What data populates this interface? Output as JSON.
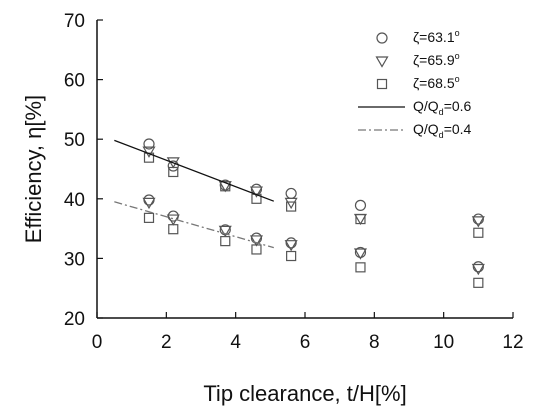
{
  "chart_data": {
    "type": "scatter",
    "xlabel": "Tip clearance, t/H[%]",
    "ylabel": "Efficiency, η[%]",
    "xlim": [
      0,
      12
    ],
    "ylim": [
      20,
      70
    ],
    "xticks": [
      "0",
      "2",
      "4",
      "6",
      "8",
      "10",
      "12"
    ],
    "yticks": [
      "20",
      "30",
      "40",
      "50",
      "60",
      "70"
    ],
    "x_tick_values": [
      0,
      2,
      4,
      6,
      8,
      10,
      12
    ],
    "y_tick_values": [
      20,
      30,
      40,
      50,
      60,
      70
    ],
    "grid": false,
    "legend_position": "top-right",
    "legend": {
      "zeta_symbol": "ζ=",
      "degree": "o",
      "flow_text_a": "Q/Q",
      "flow_sub": "d",
      "flow_text_b_06": "=0.6",
      "flow_text_b_04": "=0.4"
    },
    "series": [
      {
        "name": "63.1",
        "marker": "circle",
        "flow": "0.6",
        "x": [
          1.5,
          2.2,
          3.7,
          4.6,
          5.6,
          7.6,
          11.0
        ],
        "values": [
          49.2,
          45.5,
          42.3,
          41.6,
          40.9,
          38.9,
          36.6
        ]
      },
      {
        "name": "65.9",
        "marker": "triangle-down",
        "flow": "0.6",
        "x": [
          1.5,
          2.2,
          3.7,
          4.6,
          5.6,
          7.6,
          11.0
        ],
        "values": [
          48.0,
          46.2,
          42.2,
          41.3,
          39.4,
          36.7,
          36.3
        ]
      },
      {
        "name": "68.5",
        "marker": "square",
        "flow": "0.6",
        "x": [
          1.5,
          2.2,
          3.7,
          4.6,
          5.6,
          7.6,
          11.0
        ],
        "values": [
          46.9,
          44.5,
          42.1,
          40.0,
          38.7,
          36.6,
          34.3
        ]
      },
      {
        "name": "63.1",
        "marker": "circle",
        "flow": "0.4",
        "x": [
          1.5,
          2.2,
          3.7,
          4.6,
          5.6,
          7.6,
          11.0
        ],
        "values": [
          39.8,
          37.1,
          34.8,
          33.4,
          32.6,
          31.0,
          28.6
        ]
      },
      {
        "name": "65.9",
        "marker": "triangle-down",
        "flow": "0.4",
        "x": [
          1.5,
          2.2,
          3.7,
          4.6,
          5.6,
          7.6,
          11.0
        ],
        "values": [
          39.4,
          36.6,
          34.7,
          33.1,
          32.3,
          30.9,
          28.3
        ]
      },
      {
        "name": "68.5",
        "marker": "square",
        "flow": "0.4",
        "x": [
          1.5,
          2.2,
          3.7,
          4.6,
          5.6,
          7.6,
          11.0
        ],
        "values": [
          36.8,
          34.9,
          32.9,
          31.5,
          30.4,
          28.5,
          25.9
        ]
      }
    ],
    "trendlines": [
      {
        "name": "Q/Qd=0.6",
        "style": "solid",
        "x": [
          0.5,
          5.1
        ],
        "values": [
          49.8,
          39.6
        ]
      },
      {
        "name": "Q/Qd=0.4",
        "style": "dashed",
        "x": [
          0.5,
          5.1
        ],
        "values": [
          39.5,
          31.8
        ]
      }
    ]
  }
}
